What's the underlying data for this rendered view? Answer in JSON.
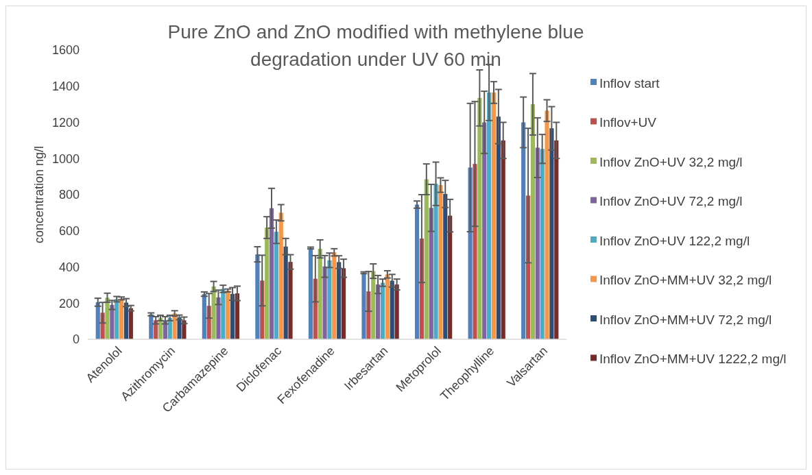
{
  "chart_data": {
    "type": "bar",
    "title": "Pure ZnO and ZnO modified with methylene blue degradation under UV 60 min",
    "ylabel": "concentration ng/l",
    "categories": [
      "Atenolol",
      "Azithromycin",
      "Carbamazepine",
      "Diclofenac",
      "Fexofenadine",
      "Irbesartan",
      "Metoprolol",
      "Theophylline",
      "Valsartan"
    ],
    "ylim": [
      0,
      1600
    ],
    "yticks": [
      0,
      200,
      400,
      600,
      800,
      1000,
      1200,
      1400,
      1600
    ],
    "grid": false,
    "legend": "right",
    "series": [
      {
        "name": "Inflov start",
        "color": "#4f81bd",
        "values": [
          205,
          138,
          250,
          470,
          505,
          368,
          745,
          950,
          1200
        ],
        "errors": [
          22,
          8,
          12,
          42,
          5,
          5,
          20,
          355,
          140
        ]
      },
      {
        "name": "Inflov+UV",
        "color": "#c0504d",
        "values": [
          147,
          105,
          185,
          325,
          335,
          265,
          557,
          970,
          795
        ],
        "errors": [
          57,
          20,
          68,
          140,
          128,
          110,
          243,
          345,
          372
        ]
      },
      {
        "name": "Inflov ZnO+UV 32,2 mg/l",
        "color": "#9bbb59",
        "values": [
          230,
          118,
          292,
          618,
          500,
          377,
          885,
          1335,
          1300
        ],
        "errors": [
          25,
          15,
          28,
          60,
          50,
          40,
          85,
          155,
          170
        ]
      },
      {
        "name": "Inflov ZnO+UV 72,2 mg/l",
        "color": "#8064a2",
        "values": [
          190,
          105,
          232,
          725,
          403,
          303,
          727,
          1200,
          1060
        ],
        "errors": [
          25,
          20,
          40,
          110,
          60,
          50,
          130,
          172,
          165
        ]
      },
      {
        "name": "Inflov ZnO+UV 122,2 mg/l",
        "color": "#4bacc6",
        "values": [
          222,
          118,
          279,
          595,
          437,
          313,
          860,
          1365,
          1053
        ],
        "errors": [
          15,
          15,
          20,
          65,
          40,
          20,
          120,
          155,
          80
        ]
      },
      {
        "name": "Inflov ZnO+MM+UV 32,2 mg/l",
        "color": "#f79646",
        "values": [
          226,
          143,
          270,
          700,
          481,
          359,
          853,
          1365,
          1265
        ],
        "errors": [
          8,
          15,
          8,
          45,
          20,
          20,
          40,
          60,
          60
        ]
      },
      {
        "name": "Inflov ZnO+MM+UV 72,2 mg/l",
        "color": "#2c4d75",
        "values": [
          203,
          121,
          251,
          513,
          427,
          324,
          804,
          1232,
          1167
        ],
        "errors": [
          22,
          13,
          35,
          45,
          35,
          35,
          75,
          150,
          120
        ]
      },
      {
        "name": "Inflov ZnO+MM+UV 1222,2 mg/l",
        "color": "#772c2a",
        "values": [
          172,
          105,
          254,
          428,
          393,
          303,
          684,
          1100,
          1100
        ],
        "errors": [
          15,
          18,
          40,
          40,
          50,
          30,
          90,
          100,
          100
        ]
      }
    ]
  }
}
